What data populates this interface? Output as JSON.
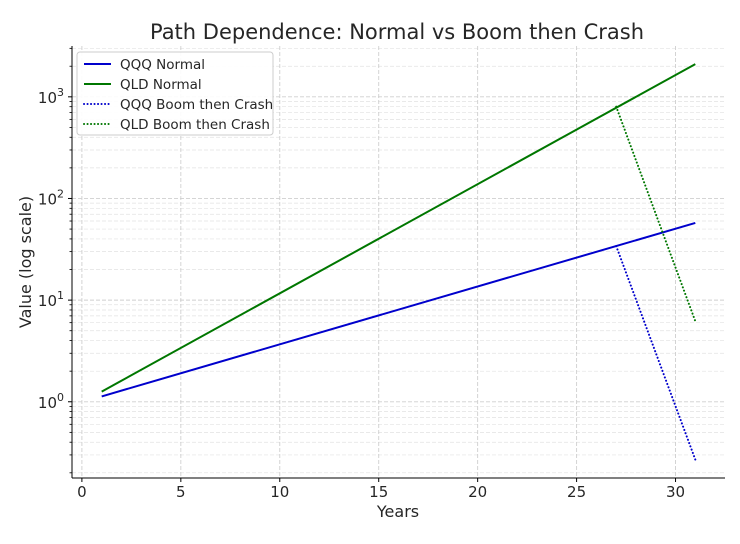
{
  "chart_data": {
    "type": "line",
    "title": "Path Dependence: Normal vs Boom then Crash",
    "xlabel": "Years",
    "ylabel": "Value (log scale)",
    "xlim": [
      -0.5,
      32.5
    ],
    "ylim_log10": [
      -0.75,
      3.5
    ],
    "yscale": "log",
    "grid": true,
    "legend_position": "top-left",
    "x_ticks": [
      0,
      5,
      10,
      15,
      20,
      25,
      30
    ],
    "x_tick_labels": [
      "0",
      "5",
      "10",
      "15",
      "20",
      "25",
      "30"
    ],
    "y_tick_exponents": [
      0,
      1,
      2,
      3
    ],
    "y_tick_base": "10",
    "series": [
      {
        "name": "QQQ Normal",
        "color": "#0000cc",
        "style": "solid",
        "x": [
          1,
          31
        ],
        "y": [
          1.13,
          57.5
        ]
      },
      {
        "name": "QLD Normal",
        "color": "#007700",
        "style": "solid",
        "x": [
          1,
          31
        ],
        "y": [
          1.26,
          2100
        ]
      },
      {
        "name": "QQQ Boom then Crash",
        "color": "#0000cc",
        "style": "dotted",
        "x": [
          27,
          31
        ],
        "y": [
          34,
          0.27
        ]
      },
      {
        "name": "QLD Boom then Crash",
        "color": "#007700",
        "style": "dotted",
        "x": [
          27,
          31
        ],
        "y": [
          800,
          6.2
        ]
      }
    ]
  }
}
